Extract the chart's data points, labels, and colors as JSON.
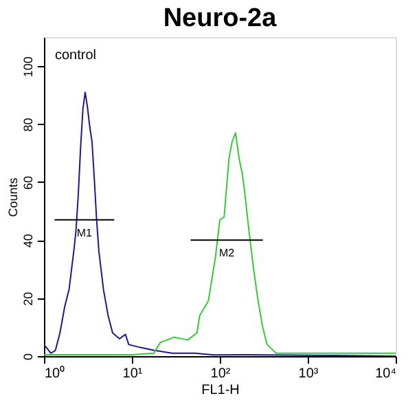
{
  "chart_data": {
    "type": "line",
    "title": "Neuro-2a",
    "xlabel": "FL1-H",
    "ylabel": "Counts",
    "annotations": [
      "control"
    ],
    "log": "x",
    "xlim": [
      1,
      10000
    ],
    "ylim": [
      0,
      110
    ],
    "xticks": [
      {
        "value": 1,
        "label": "10⁰"
      },
      {
        "value": 10,
        "label": "10¹"
      },
      {
        "value": 100,
        "label": "10²"
      },
      {
        "value": 1000,
        "label": "10³"
      },
      {
        "value": 10000,
        "label": "10⁴"
      }
    ],
    "yticks": [
      0,
      20,
      40,
      60,
      80,
      100
    ],
    "grid": false,
    "marker": "none",
    "line_style": "solid",
    "series": [
      {
        "color": "#1a1a8c",
        "x": [
          1.0,
          1.2,
          1.35,
          1.52,
          1.72,
          1.93,
          2.18,
          2.31,
          2.46,
          2.61,
          2.77,
          2.94,
          3.12,
          3.32,
          3.52,
          3.74,
          3.97,
          4.22,
          4.75,
          5.36,
          6.04,
          7.23,
          8.45,
          9.2,
          12.4,
          17.8,
          28.7,
          52.3,
          84.5,
          200,
          1000,
          10000
        ],
        "values": [
          4,
          1,
          2,
          8,
          17,
          23,
          36,
          43,
          56,
          72,
          85,
          91,
          86,
          79,
          74,
          61,
          47,
          36,
          23,
          14,
          8,
          6,
          7.5,
          4,
          3,
          2,
          1,
          1,
          0.4,
          0.5,
          0.3,
          0
        ]
      },
      {
        "color": "#33cc33",
        "x": [
          1.0,
          10,
          17.8,
          21,
          30,
          43,
          55,
          59,
          74,
          89,
          100,
          112,
          127,
          138,
          151,
          166,
          180,
          191,
          215,
          242,
          273,
          307,
          345,
          437,
          1130,
          3600,
          10000
        ],
        "values": [
          0.5,
          0.5,
          1,
          4.7,
          6.5,
          5.6,
          8,
          14,
          19,
          34,
          47,
          48,
          68,
          74,
          77,
          68,
          63,
          57,
          43,
          30,
          19,
          10,
          4,
          1,
          1,
          1,
          1
        ]
      },
      {
        "name": "M1",
        "color": "#000000",
        "x": [
          1.32,
          6.3
        ],
        "values": [
          47,
          47
        ]
      },
      {
        "name": "M2",
        "color": "#000000",
        "x": [
          46.5,
          309
        ],
        "values": [
          40,
          40
        ]
      }
    ]
  }
}
